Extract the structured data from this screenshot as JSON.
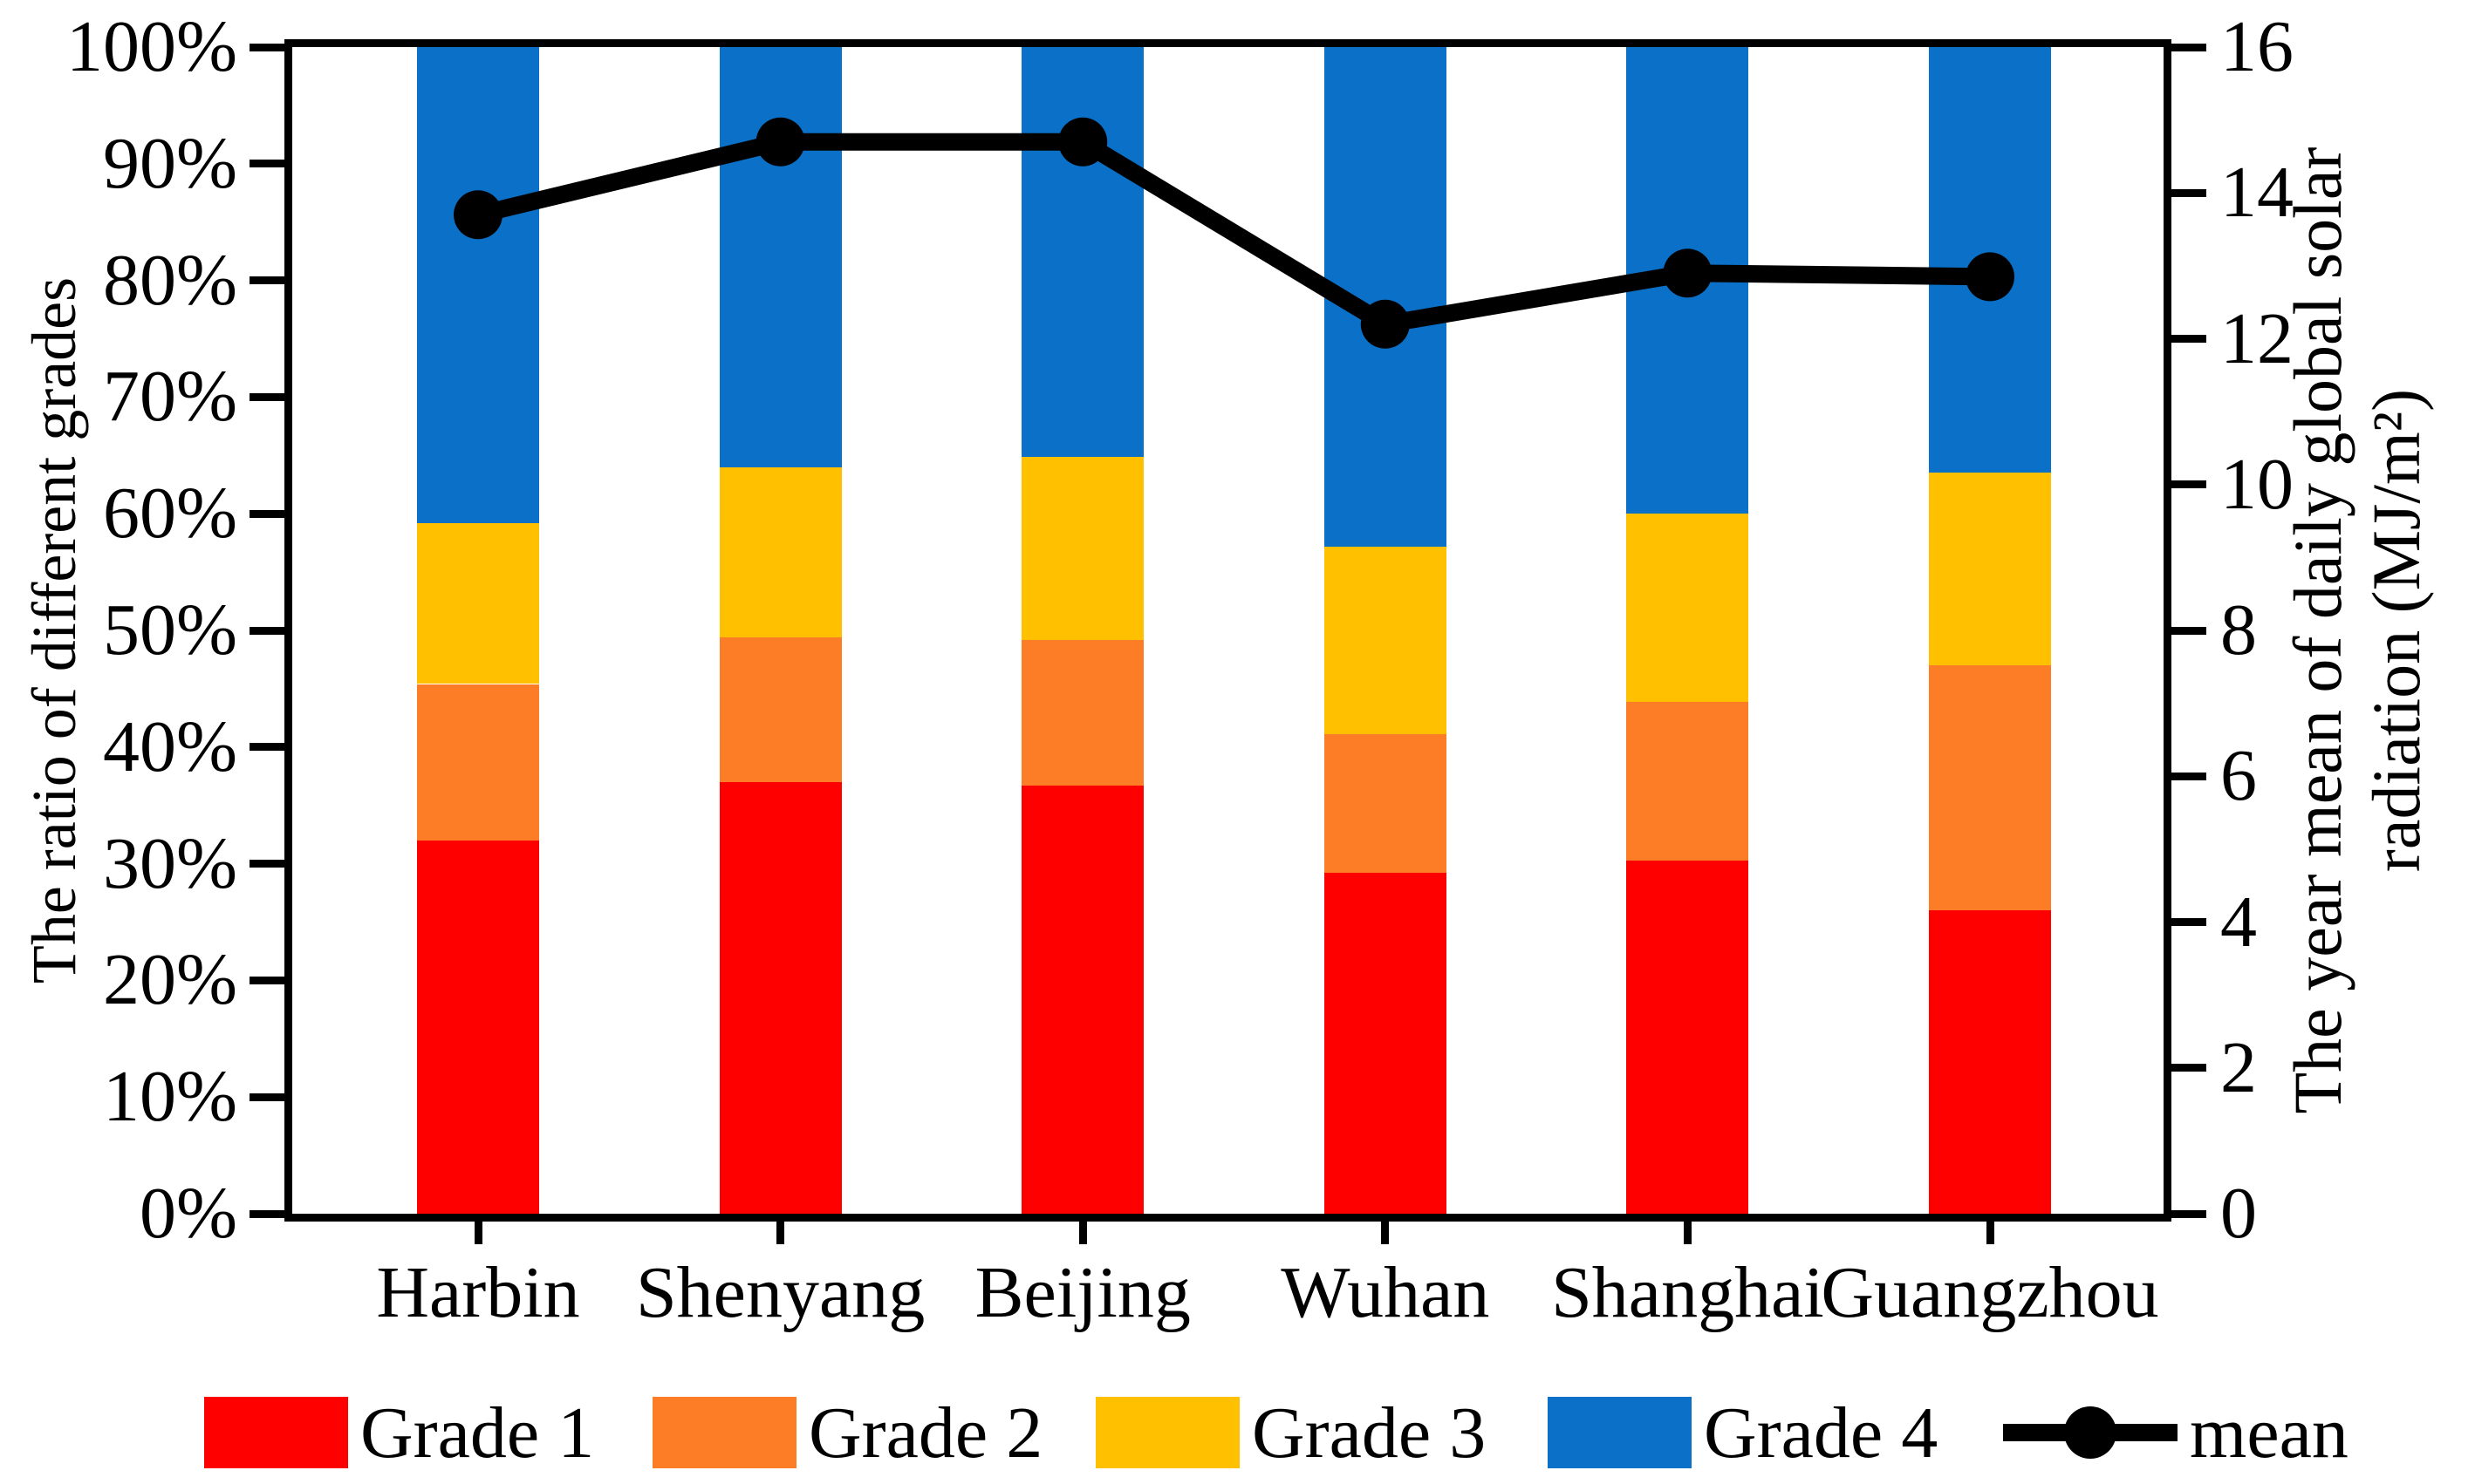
{
  "chart_data": {
    "type": "bar",
    "stacked": true,
    "grid": false,
    "legend_position": "bottom",
    "categories": [
      "Harbin",
      "Shenyang",
      "Beijing",
      "Wuhan",
      "Shanghai",
      "Guangzhou"
    ],
    "series": [
      {
        "name": "Grade 1",
        "color": "#FE0000",
        "values": [
          32.0,
          37.0,
          36.7,
          29.2,
          30.3,
          26.0
        ]
      },
      {
        "name": "Grade 2",
        "color": "#FC7D26",
        "values": [
          13.4,
          12.4,
          12.5,
          11.9,
          13.6,
          21.0
        ]
      },
      {
        "name": "Grade 3",
        "color": "#FFC000",
        "values": [
          13.8,
          14.6,
          15.7,
          16.1,
          16.1,
          16.5
        ]
      },
      {
        "name": "Grade 4",
        "color": "#0A70C8",
        "values": [
          40.8,
          36.0,
          35.1,
          42.8,
          40.0,
          36.5
        ]
      }
    ],
    "line_series": {
      "name": "mean",
      "color": "#000000",
      "axis": "right",
      "values": [
        13.7,
        14.7,
        14.7,
        12.2,
        12.9,
        12.85
      ]
    },
    "left_axis": {
      "title": "The ratio of different grades",
      "min": 0,
      "max": 100,
      "tick_labels": [
        "0%",
        "10%",
        "20%",
        "30%",
        "40%",
        "50%",
        "60%",
        "70%",
        "80%",
        "90%",
        "100%"
      ]
    },
    "right_axis": {
      "title_line1": "The year mean of daily global solar",
      "title_line2": "radiation (MJ/m²)",
      "min": 0,
      "max": 16,
      "tick_labels": [
        "0",
        "2",
        "4",
        "6",
        "8",
        "10",
        "12",
        "14",
        "16"
      ]
    }
  }
}
